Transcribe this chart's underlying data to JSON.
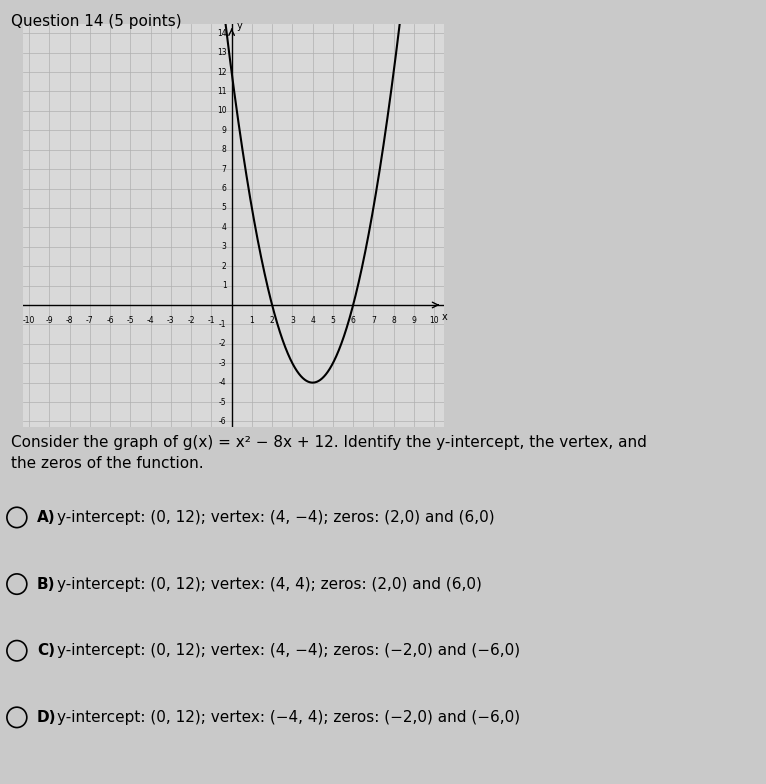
{
  "title": "Question 14 (5 points)",
  "question_text": "Consider the graph of g(x) = x² − 8x + 12. Identify the y-intercept, the vertex, and\nthe zeros of the function.",
  "xmin": -10,
  "xmax": 10,
  "ymin": -6,
  "ymax": 14,
  "curve_color": "#000000",
  "grid_color": "#b0b0b0",
  "axis_color": "#000000",
  "background_color": "#c9c9c9",
  "plot_bg_color": "#d9d9d9",
  "options": [
    {
      "label": "A)",
      "text": "y-intercept: (0, 12); vertex: (4, −4); zeros: (2,0) and (6,0)"
    },
    {
      "label": "B)",
      "text": "y-intercept: (0, 12); vertex: (4, 4); zeros: (2,0) and (6,0)"
    },
    {
      "label": "C)",
      "text": "y-intercept: (0, 12); vertex: (4, −4); zeros: (−2,0) and (−6,0)"
    },
    {
      "label": "D)",
      "text": "y-intercept: (0, 12); vertex: (−4, 4); zeros: (−2,0) and (−6,0)"
    }
  ],
  "title_fontsize": 11,
  "question_fontsize": 11,
  "option_fontsize": 11
}
